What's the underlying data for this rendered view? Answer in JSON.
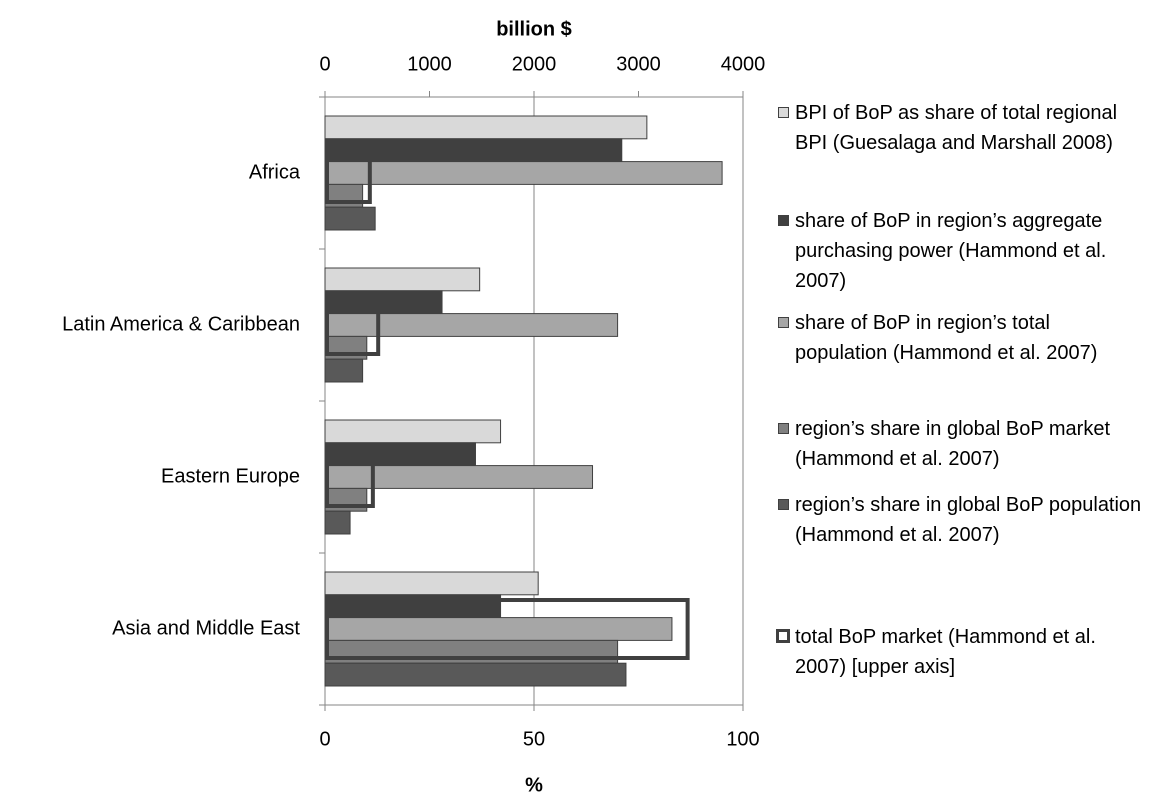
{
  "chart_data": {
    "type": "bar",
    "orientation": "horizontal",
    "categories": [
      "Africa",
      "Latin America & Caribbean",
      "Eastern Europe",
      "Asia and Middle East"
    ],
    "xlabel": "%",
    "xlim": [
      0,
      100
    ],
    "xticks": [
      0,
      50,
      100
    ],
    "x2label": "billion $",
    "x2lim": [
      0,
      4000
    ],
    "x2ticks": [
      0,
      1000,
      2000,
      3000,
      4000
    ],
    "grid": true,
    "legend": "right",
    "series": [
      {
        "name": "BPI of BoP as share of total regional BPI (Guesalaga and Marshall 2008)",
        "color": "#d9d9d9",
        "values": [
          77,
          37,
          42,
          51
        ]
      },
      {
        "name": "share of BoP in region’s aggregate purchasing power (Hammond et al. 2007)",
        "color": "#404040",
        "values": [
          71,
          28,
          36,
          42
        ]
      },
      {
        "name": "share of BoP in region’s total population (Hammond et al. 2007)",
        "color": "#a6a6a6",
        "values": [
          95,
          70,
          64,
          83
        ]
      },
      {
        "name": "region’s share in global BoP market (Hammond et al. 2007)",
        "color": "#808080",
        "values": [
          9,
          10,
          10,
          70
        ]
      },
      {
        "name": "region’s share in global BoP population (Hammond et al. 2007)",
        "color": "#595959",
        "values": [
          12,
          9,
          6,
          72
        ]
      },
      {
        "name": "total BoP market (Hammond et al. 2007) [upper axis]",
        "color": "#404040",
        "axis": "x2",
        "style": "outline",
        "values": [
          429,
          509,
          458,
          3470
        ]
      }
    ]
  }
}
